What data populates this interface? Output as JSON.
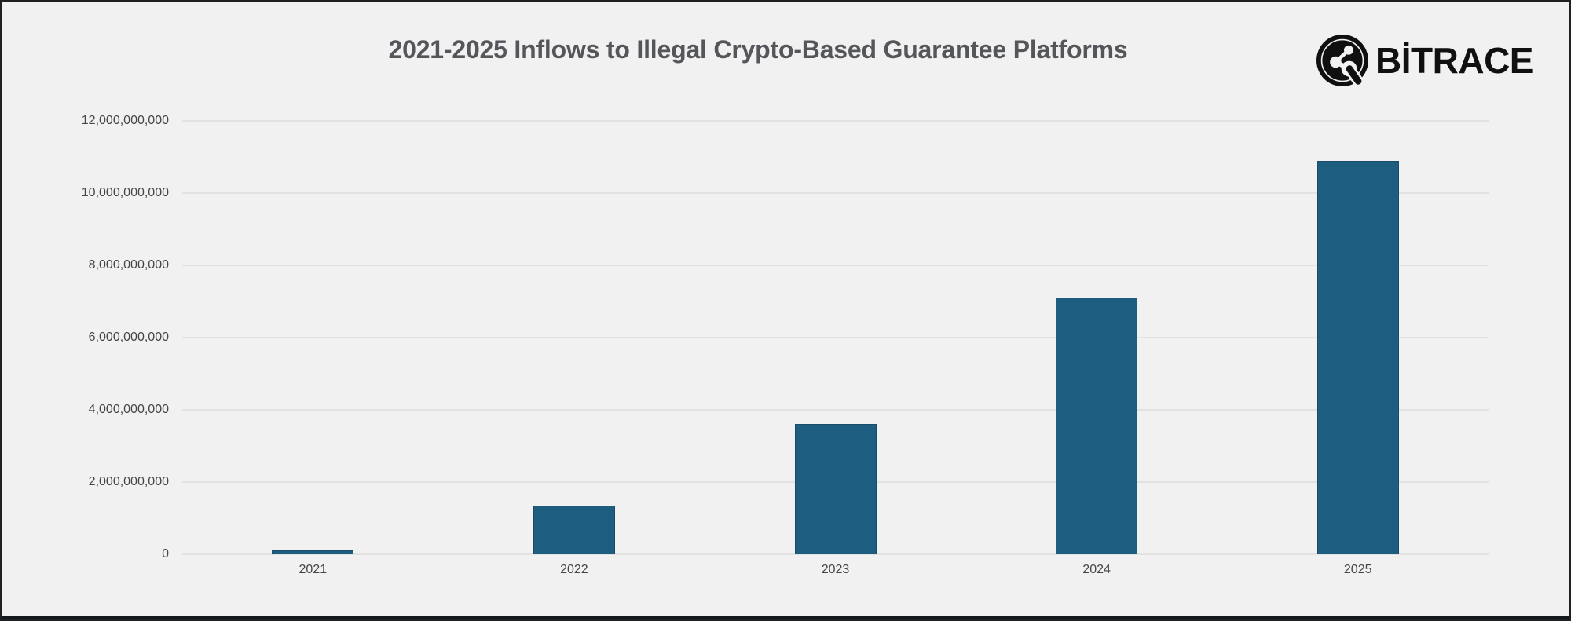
{
  "page": {
    "background": "#f1f1f2",
    "frame_border_color": "#202020",
    "footer_strip_color": "#14171d"
  },
  "header": {
    "title": "2021-2025 Inflows to Illegal Crypto-Based Guarantee Platforms",
    "title_color": "#55565a",
    "logo": {
      "wordmark": "BİTRACE",
      "icon": "bitrace-molecule-icon",
      "color": "#101010"
    }
  },
  "chart_data": {
    "type": "bar",
    "title": "2021-2025 Inflows to Illegal Crypto-Based Guarantee Platforms",
    "categories": [
      "2021",
      "2022",
      "2023",
      "2024",
      "2025"
    ],
    "values": [
      100000000,
      1350000000,
      3600000000,
      7100000000,
      10900000000
    ],
    "xlabel": "",
    "ylabel": "",
    "ylim": [
      0,
      12000000000
    ],
    "ytick_step": 2000000000,
    "ytick_labels": [
      "0",
      "2,000,000,000",
      "4,000,000,000",
      "6,000,000,000",
      "8,000,000,000",
      "10,000,000,000",
      "12,000,000,000"
    ],
    "grid": true,
    "legend": "none",
    "bar_color": "#1d5e80",
    "gridline_color": "#e2e2e3",
    "tick_label_color": "#454545"
  }
}
